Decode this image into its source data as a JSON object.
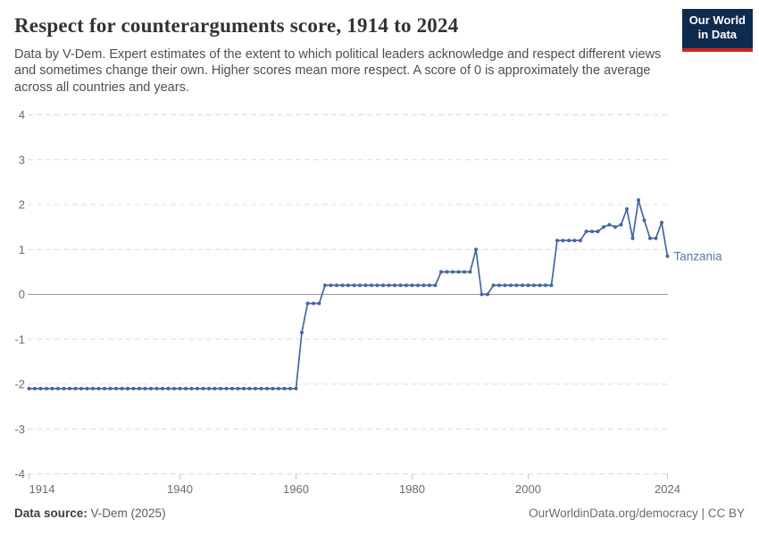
{
  "header": {
    "title": "Respect for counterarguments score, 1914 to 2024",
    "subtitle": "Data by V-Dem. Expert estimates of the extent to which political leaders acknowledge and respect different views and sometimes change their own. Higher scores mean more respect. A score of 0 is approximately the average across all countries and years.",
    "logo": {
      "line1": "Our World",
      "line2": "in Data"
    }
  },
  "footer": {
    "source_label": "Data source:",
    "source_value": " V-Dem (2025)",
    "credit": "OurWorldinData.org/democracy | CC BY"
  },
  "colors": {
    "line": "#4466A2",
    "series_label": "#5878A8",
    "grid": "#dcdcdc",
    "zero_line": "#9b9b9b",
    "tick": "#c4c4c4",
    "axis_text": "#6b6b6b",
    "logo_bg": "#0E2B4E",
    "logo_red": "#CB2420"
  },
  "chart_data": {
    "type": "line",
    "title": "Respect for counterarguments score, 1914 to 2024",
    "series_name": "Tanzania",
    "start_year": 1914,
    "end_year": 2024,
    "x_ticks": [
      1914,
      1940,
      1960,
      1980,
      2000,
      2024
    ],
    "y_ticks": [
      4,
      3,
      2,
      1,
      0,
      -1,
      -2,
      -3,
      -4
    ],
    "ylim": [
      -4,
      4
    ],
    "grid": "dashed horizontal gridlines, solid zero line, legend as end-of-line label",
    "values": [
      -2.1,
      -2.1,
      -2.1,
      -2.1,
      -2.1,
      -2.1,
      -2.1,
      -2.1,
      -2.1,
      -2.1,
      -2.1,
      -2.1,
      -2.1,
      -2.1,
      -2.1,
      -2.1,
      -2.1,
      -2.1,
      -2.1,
      -2.1,
      -2.1,
      -2.1,
      -2.1,
      -2.1,
      -2.1,
      -2.1,
      -2.1,
      -2.1,
      -2.1,
      -2.1,
      -2.1,
      -2.1,
      -2.1,
      -2.1,
      -2.1,
      -2.1,
      -2.1,
      -2.1,
      -2.1,
      -2.1,
      -2.1,
      -2.1,
      -2.1,
      -2.1,
      -2.1,
      -2.1,
      -2.1,
      -0.85,
      -0.2,
      -0.2,
      -0.2,
      0.2,
      0.2,
      0.2,
      0.2,
      0.2,
      0.2,
      0.2,
      0.2,
      0.2,
      0.2,
      0.2,
      0.2,
      0.2,
      0.2,
      0.2,
      0.2,
      0.2,
      0.2,
      0.2,
      0.2,
      0.5,
      0.5,
      0.5,
      0.5,
      0.5,
      0.5,
      1.0,
      0.0,
      0.0,
      0.2,
      0.2,
      0.2,
      0.2,
      0.2,
      0.2,
      0.2,
      0.2,
      0.2,
      0.2,
      0.2,
      1.2,
      1.2,
      1.2,
      1.2,
      1.2,
      1.4,
      1.4,
      1.4,
      1.5,
      1.55,
      1.5,
      1.55,
      1.9,
      1.25,
      2.1,
      1.65,
      1.25,
      1.25,
      1.6,
      0.85
    ]
  }
}
